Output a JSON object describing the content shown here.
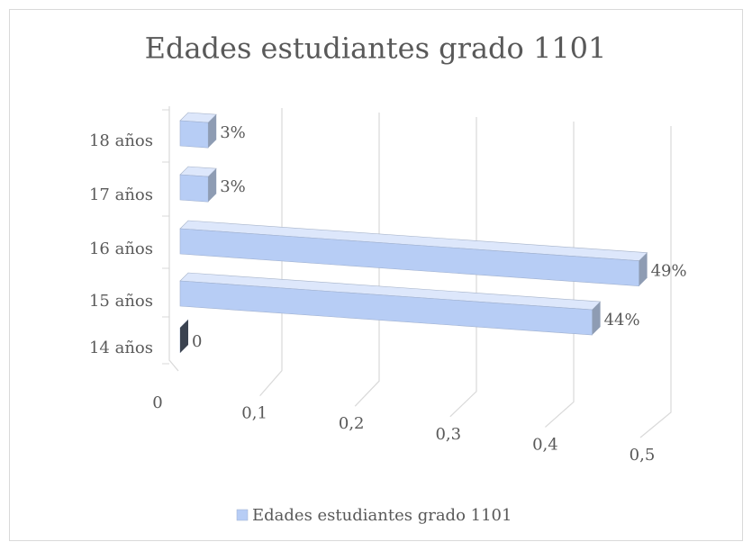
{
  "chart_data": {
    "type": "bar3d_horizontal",
    "title": "Edades estudiantes grado 1101",
    "categories": [
      "14 años",
      "15 años",
      "16 años",
      "17 años",
      "18 años"
    ],
    "series": [
      {
        "name": "Edades estudiantes grado 1101",
        "color": "#b7cdf5",
        "values": [
          0,
          0.44,
          0.49,
          0.03,
          0.03
        ],
        "value_labels": [
          "0",
          "44%",
          "49%",
          "3%",
          "3%"
        ]
      }
    ],
    "xlim": [
      0,
      0.5
    ],
    "xticks": [
      0,
      {
        "value": 0.1,
        "label": "0,1"
      },
      {
        "value": 0.2,
        "label": "0,2"
      },
      {
        "value": 0.3,
        "label": "0,3"
      },
      {
        "value": 0.4,
        "label": "0,4"
      },
      {
        "value": 0.5,
        "label": "0,5"
      }
    ],
    "grid": true,
    "legend": "bottom"
  }
}
